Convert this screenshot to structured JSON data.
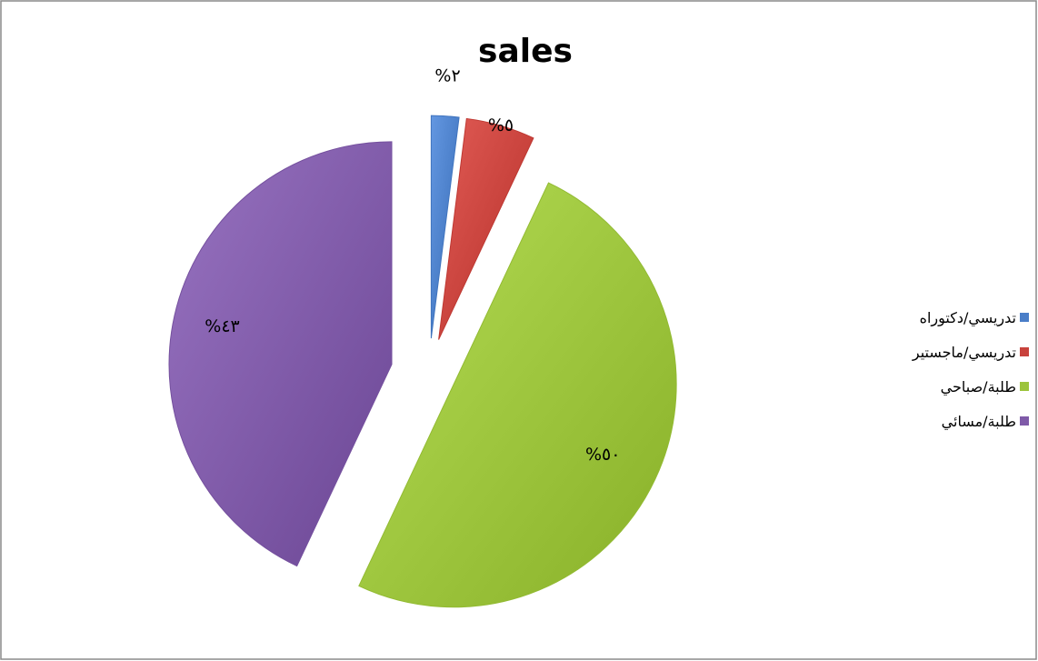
{
  "chart_data": {
    "type": "pie",
    "title": "sales",
    "slices": [
      {
        "label": "تدريسي/دكتوراه",
        "value": 2,
        "data_label": "%٢",
        "color": "#4a7ec8"
      },
      {
        "label": "تدريسي/ماجستير",
        "value": 5,
        "data_label": "%٥",
        "color": "#c8423c"
      },
      {
        "label": "طلبة/صباحي",
        "value": 50,
        "data_label": "%٥٠",
        "color": "#9cc43c"
      },
      {
        "label": "طلبة/مسائي",
        "value": 43,
        "data_label": "%٤٣",
        "color": "#7f5aa8"
      }
    ],
    "exploded": true,
    "legend_position": "right"
  }
}
